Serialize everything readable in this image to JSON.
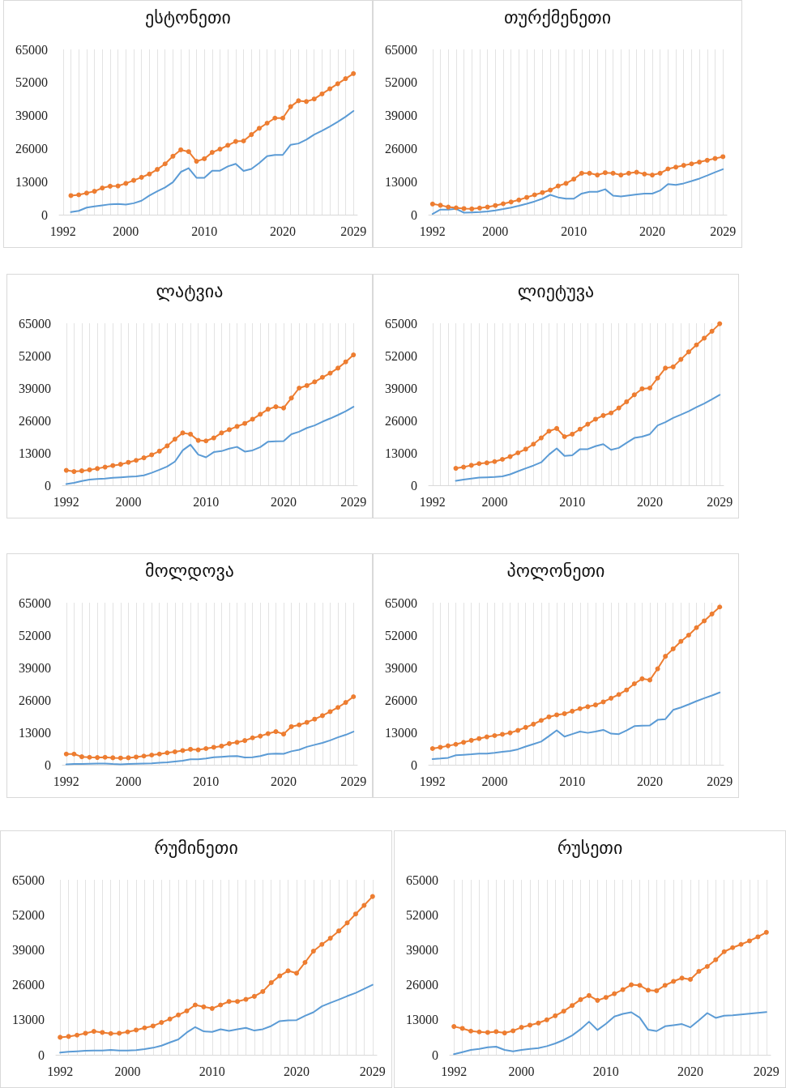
{
  "chart_data": [
    {
      "type": "line",
      "title": "ესტონეთი",
      "x": [
        1993,
        1994,
        1995,
        1996,
        1997,
        1998,
        1999,
        2000,
        2001,
        2002,
        2003,
        2004,
        2005,
        2006,
        2007,
        2008,
        2009,
        2010,
        2011,
        2012,
        2013,
        2014,
        2015,
        2016,
        2017,
        2018,
        2019,
        2020,
        2021,
        2022,
        2023,
        2024,
        2025,
        2026,
        2027,
        2028,
        2029
      ],
      "xlim": [
        1991.5,
        2029.5
      ],
      "xticks": [
        1992,
        {
          "value": 1993,
          "label": null
        },
        {
          "value": 1994,
          "label": null
        },
        {
          "value": 1995,
          "label": null
        },
        {
          "value": 1996,
          "label": null
        },
        {
          "value": 1997,
          "label": null
        },
        {
          "value": 1998,
          "label": null
        },
        {
          "value": 1999,
          "label": null
        },
        2000,
        {
          "value": 2001,
          "label": null
        },
        {
          "value": 2002,
          "label": null
        },
        {
          "value": 2003,
          "label": null
        },
        {
          "value": 2004,
          "label": null
        },
        {
          "value": 2005,
          "label": null
        },
        {
          "value": 2006,
          "label": null
        },
        {
          "value": 2007,
          "label": null
        },
        {
          "value": 2008,
          "label": null
        },
        {
          "value": 2009,
          "label": null
        },
        2010,
        {
          "value": 2011,
          "label": null
        },
        {
          "value": 2012,
          "label": null
        },
        {
          "value": 2013,
          "label": null
        },
        {
          "value": 2014,
          "label": null
        },
        {
          "value": 2015,
          "label": null
        },
        {
          "value": 2016,
          "label": null
        },
        {
          "value": 2017,
          "label": null
        },
        {
          "value": 2018,
          "label": null
        },
        {
          "value": 2019,
          "label": null
        },
        2020,
        {
          "value": 2021,
          "label": null
        },
        {
          "value": 2022,
          "label": null
        },
        {
          "value": 2023,
          "label": null
        },
        {
          "value": 2024,
          "label": null
        },
        {
          "value": 2025,
          "label": null
        },
        {
          "value": 2026,
          "label": null
        },
        {
          "value": 2027,
          "label": null
        },
        {
          "value": 2028,
          "label": null
        },
        2029
      ],
      "ylim": [
        0,
        65000
      ],
      "yticks": [
        0,
        13000,
        26000,
        39000,
        52000,
        65000
      ],
      "grid": "x",
      "series": [
        {
          "color": "#5b9bd5",
          "marker": "none",
          "values": [
            1000,
            1500,
            2800,
            3300,
            3700,
            4100,
            4200,
            4000,
            4500,
            5500,
            7500,
            9200,
            10700,
            12800,
            16800,
            18300,
            14500,
            14500,
            17300,
            17300,
            19000,
            20000,
            17200,
            18000,
            20300,
            23000,
            23500,
            23500,
            27500,
            28000,
            29500,
            31500,
            33000,
            34700,
            36500,
            38500,
            40800
          ]
        },
        {
          "color": "#ed7d31",
          "marker": "circle",
          "values": [
            7500,
            7800,
            8500,
            9200,
            10500,
            11200,
            11300,
            12300,
            13500,
            14700,
            16000,
            17800,
            20000,
            23000,
            25500,
            24800,
            21000,
            22000,
            24500,
            25800,
            27300,
            28800,
            29000,
            31500,
            34000,
            36000,
            38000,
            38000,
            42500,
            44800,
            44500,
            45500,
            47500,
            49500,
            51500,
            53500,
            55500
          ]
        }
      ]
    },
    {
      "type": "line",
      "title": "თურქმენეთი",
      "x": [
        1992,
        1993,
        1994,
        1995,
        1996,
        1997,
        1998,
        1999,
        2000,
        2001,
        2002,
        2003,
        2004,
        2005,
        2006,
        2007,
        2008,
        2009,
        2010,
        2011,
        2012,
        2013,
        2014,
        2015,
        2016,
        2017,
        2018,
        2019,
        2020,
        2021,
        2022,
        2023,
        2024,
        2025,
        2026,
        2027,
        2028,
        2029
      ],
      "xlim": [
        1991.5,
        2029.5
      ],
      "xticks": [
        1992,
        {
          "value": 1993,
          "label": null
        },
        {
          "value": 1994,
          "label": null
        },
        {
          "value": 1995,
          "label": null
        },
        {
          "value": 1996,
          "label": null
        },
        {
          "value": 1997,
          "label": null
        },
        {
          "value": 1998,
          "label": null
        },
        {
          "value": 1999,
          "label": null
        },
        2000,
        {
          "value": 2001,
          "label": null
        },
        {
          "value": 2002,
          "label": null
        },
        {
          "value": 2003,
          "label": null
        },
        {
          "value": 2004,
          "label": null
        },
        {
          "value": 2005,
          "label": null
        },
        {
          "value": 2006,
          "label": null
        },
        {
          "value": 2007,
          "label": null
        },
        {
          "value": 2008,
          "label": null
        },
        {
          "value": 2009,
          "label": null
        },
        2010,
        {
          "value": 2011,
          "label": null
        },
        {
          "value": 2012,
          "label": null
        },
        {
          "value": 2013,
          "label": null
        },
        {
          "value": 2014,
          "label": null
        },
        {
          "value": 2015,
          "label": null
        },
        {
          "value": 2016,
          "label": null
        },
        {
          "value": 2017,
          "label": null
        },
        {
          "value": 2018,
          "label": null
        },
        {
          "value": 2019,
          "label": null
        },
        2020,
        {
          "value": 2021,
          "label": null
        },
        {
          "value": 2022,
          "label": null
        },
        {
          "value": 2023,
          "label": null
        },
        {
          "value": 2024,
          "label": null
        },
        {
          "value": 2025,
          "label": null
        },
        {
          "value": 2026,
          "label": null
        },
        {
          "value": 2027,
          "label": null
        },
        {
          "value": 2028,
          "label": null
        },
        2029
      ],
      "ylim": [
        0,
        65000
      ],
      "yticks": [
        0,
        13000,
        26000,
        39000,
        52000,
        65000
      ],
      "grid": "x",
      "series": [
        {
          "color": "#5b9bd5",
          "marker": "none",
          "values": [
            300,
            2000,
            2000,
            2300,
            800,
            900,
            1000,
            1300,
            1700,
            2200,
            2800,
            3500,
            4300,
            5200,
            6300,
            7800,
            6800,
            6300,
            6300,
            8300,
            9000,
            9000,
            10000,
            7500,
            7200,
            7600,
            8000,
            8300,
            8300,
            9500,
            12000,
            11700,
            12300,
            13200,
            14200,
            15400,
            16700,
            17900
          ]
        },
        {
          "color": "#ed7d31",
          "marker": "circle",
          "values": [
            4200,
            3700,
            3000,
            2700,
            2400,
            2300,
            2600,
            3000,
            3600,
            4300,
            5000,
            5800,
            6800,
            7800,
            8700,
            9700,
            11300,
            12300,
            14000,
            16300,
            16300,
            15600,
            16500,
            16300,
            15600,
            16300,
            16700,
            16000,
            15600,
            16300,
            18000,
            18700,
            19400,
            20000,
            20700,
            21400,
            22100,
            22800
          ]
        }
      ]
    },
    {
      "type": "line",
      "title": "ლატვია",
      "x": [
        1992,
        1993,
        1994,
        1995,
        1996,
        1997,
        1998,
        1999,
        2000,
        2001,
        2002,
        2003,
        2004,
        2005,
        2006,
        2007,
        2008,
        2009,
        2010,
        2011,
        2012,
        2013,
        2014,
        2015,
        2016,
        2017,
        2018,
        2019,
        2020,
        2021,
        2022,
        2023,
        2024,
        2025,
        2026,
        2027,
        2028,
        2029
      ],
      "xlim": [
        1991.5,
        2029.5
      ],
      "xticks": [
        1992,
        {
          "value": 1993,
          "label": null
        },
        {
          "value": 1994,
          "label": null
        },
        {
          "value": 1995,
          "label": null
        },
        {
          "value": 1996,
          "label": null
        },
        {
          "value": 1997,
          "label": null
        },
        {
          "value": 1998,
          "label": null
        },
        {
          "value": 1999,
          "label": null
        },
        2000,
        {
          "value": 2001,
          "label": null
        },
        {
          "value": 2002,
          "label": null
        },
        {
          "value": 2003,
          "label": null
        },
        {
          "value": 2004,
          "label": null
        },
        {
          "value": 2005,
          "label": null
        },
        {
          "value": 2006,
          "label": null
        },
        {
          "value": 2007,
          "label": null
        },
        {
          "value": 2008,
          "label": null
        },
        {
          "value": 2009,
          "label": null
        },
        2010,
        {
          "value": 2011,
          "label": null
        },
        {
          "value": 2012,
          "label": null
        },
        {
          "value": 2013,
          "label": null
        },
        {
          "value": 2014,
          "label": null
        },
        {
          "value": 2015,
          "label": null
        },
        {
          "value": 2016,
          "label": null
        },
        {
          "value": 2017,
          "label": null
        },
        {
          "value": 2018,
          "label": null
        },
        {
          "value": 2019,
          "label": null
        },
        2020,
        {
          "value": 2021,
          "label": null
        },
        {
          "value": 2022,
          "label": null
        },
        {
          "value": 2023,
          "label": null
        },
        {
          "value": 2024,
          "label": null
        },
        {
          "value": 2025,
          "label": null
        },
        {
          "value": 2026,
          "label": null
        },
        {
          "value": 2027,
          "label": null
        },
        {
          "value": 2028,
          "label": null
        },
        2029
      ],
      "ylim": [
        0,
        65000
      ],
      "yticks": [
        0,
        13000,
        26000,
        39000,
        52000,
        65000
      ],
      "grid": "x",
      "series": [
        {
          "color": "#5b9bd5",
          "marker": "none",
          "values": [
            500,
            1000,
            1700,
            2300,
            2500,
            2700,
            3000,
            3200,
            3400,
            3600,
            4000,
            5000,
            6200,
            7500,
            9500,
            14000,
            16300,
            12300,
            11200,
            13300,
            13700,
            14700,
            15400,
            13500,
            14000,
            15300,
            17500,
            17600,
            17700,
            20500,
            21500,
            23000,
            24000,
            25500,
            26800,
            28200,
            29700,
            31500
          ]
        },
        {
          "color": "#ed7d31",
          "marker": "circle",
          "values": [
            6000,
            5500,
            5800,
            6200,
            6700,
            7300,
            7900,
            8400,
            9200,
            10000,
            11000,
            12200,
            13700,
            15800,
            18500,
            21000,
            20500,
            18000,
            17800,
            19000,
            21000,
            22300,
            23600,
            24800,
            26500,
            28500,
            30500,
            31500,
            31000,
            35000,
            39000,
            40000,
            41500,
            43300,
            45000,
            47000,
            49500,
            52300
          ]
        }
      ]
    },
    {
      "type": "line",
      "title": "ლიეტუვა",
      "x": [
        1995,
        1996,
        1997,
        1998,
        1999,
        2000,
        2001,
        2002,
        2003,
        2004,
        2005,
        2006,
        2007,
        2008,
        2009,
        2010,
        2011,
        2012,
        2013,
        2014,
        2015,
        2016,
        2017,
        2018,
        2019,
        2020,
        2021,
        2022,
        2023,
        2024,
        2025,
        2026,
        2027,
        2028,
        2029
      ],
      "xlim": [
        1991.5,
        2029.5
      ],
      "xticks": [
        1992,
        {
          "value": 1993,
          "label": null
        },
        {
          "value": 1994,
          "label": null
        },
        {
          "value": 1995,
          "label": null
        },
        {
          "value": 1996,
          "label": null
        },
        {
          "value": 1997,
          "label": null
        },
        {
          "value": 1998,
          "label": null
        },
        {
          "value": 1999,
          "label": null
        },
        2000,
        {
          "value": 2001,
          "label": null
        },
        {
          "value": 2002,
          "label": null
        },
        {
          "value": 2003,
          "label": null
        },
        {
          "value": 2004,
          "label": null
        },
        {
          "value": 2005,
          "label": null
        },
        {
          "value": 2006,
          "label": null
        },
        {
          "value": 2007,
          "label": null
        },
        {
          "value": 2008,
          "label": null
        },
        {
          "value": 2009,
          "label": null
        },
        2010,
        {
          "value": 2011,
          "label": null
        },
        {
          "value": 2012,
          "label": null
        },
        {
          "value": 2013,
          "label": null
        },
        {
          "value": 2014,
          "label": null
        },
        {
          "value": 2015,
          "label": null
        },
        {
          "value": 2016,
          "label": null
        },
        {
          "value": 2017,
          "label": null
        },
        {
          "value": 2018,
          "label": null
        },
        {
          "value": 2019,
          "label": null
        },
        2020,
        {
          "value": 2021,
          "label": null
        },
        {
          "value": 2022,
          "label": null
        },
        {
          "value": 2023,
          "label": null
        },
        {
          "value": 2024,
          "label": null
        },
        {
          "value": 2025,
          "label": null
        },
        {
          "value": 2026,
          "label": null
        },
        {
          "value": 2027,
          "label": null
        },
        {
          "value": 2028,
          "label": null
        },
        2029
      ],
      "ylim": [
        0,
        65000
      ],
      "yticks": [
        0,
        13000,
        26000,
        39000,
        52000,
        65000
      ],
      "grid": "x",
      "series": [
        {
          "color": "#5b9bd5",
          "marker": "none",
          "values": [
            1800,
            2300,
            2700,
            3100,
            3200,
            3300,
            3600,
            4400,
            5600,
            6800,
            7900,
            9200,
            12300,
            14800,
            11800,
            12000,
            14500,
            14500,
            15700,
            16500,
            14200,
            15000,
            17000,
            19000,
            19500,
            20500,
            24000,
            25300,
            27000,
            28300,
            29700,
            31300,
            32800,
            34500,
            36300
          ]
        },
        {
          "color": "#ed7d31",
          "marker": "circle",
          "values": [
            6800,
            7300,
            8000,
            8700,
            9000,
            9500,
            10400,
            11500,
            13000,
            14500,
            16500,
            19000,
            21700,
            22800,
            19500,
            20500,
            22500,
            24500,
            26500,
            28000,
            29000,
            31000,
            33500,
            36300,
            38700,
            39000,
            43000,
            47000,
            47500,
            50500,
            53500,
            56300,
            59000,
            61800,
            64800
          ]
        }
      ]
    },
    {
      "type": "line",
      "title": "მოლდოვა",
      "x": [
        1992,
        1993,
        1994,
        1995,
        1996,
        1997,
        1998,
        1999,
        2000,
        2001,
        2002,
        2003,
        2004,
        2005,
        2006,
        2007,
        2008,
        2009,
        2010,
        2011,
        2012,
        2013,
        2014,
        2015,
        2016,
        2017,
        2018,
        2019,
        2020,
        2021,
        2022,
        2023,
        2024,
        2025,
        2026,
        2027,
        2028,
        2029
      ],
      "xlim": [
        1991.5,
        2029.5
      ],
      "xticks": [
        1992,
        {
          "value": 1993,
          "label": null
        },
        {
          "value": 1994,
          "label": null
        },
        {
          "value": 1995,
          "label": null
        },
        {
          "value": 1996,
          "label": null
        },
        {
          "value": 1997,
          "label": null
        },
        {
          "value": 1998,
          "label": null
        },
        {
          "value": 1999,
          "label": null
        },
        2000,
        {
          "value": 2001,
          "label": null
        },
        {
          "value": 2002,
          "label": null
        },
        {
          "value": 2003,
          "label": null
        },
        {
          "value": 2004,
          "label": null
        },
        {
          "value": 2005,
          "label": null
        },
        {
          "value": 2006,
          "label": null
        },
        {
          "value": 2007,
          "label": null
        },
        {
          "value": 2008,
          "label": null
        },
        {
          "value": 2009,
          "label": null
        },
        2010,
        {
          "value": 2011,
          "label": null
        },
        {
          "value": 2012,
          "label": null
        },
        {
          "value": 2013,
          "label": null
        },
        {
          "value": 2014,
          "label": null
        },
        {
          "value": 2015,
          "label": null
        },
        {
          "value": 2016,
          "label": null
        },
        {
          "value": 2017,
          "label": null
        },
        {
          "value": 2018,
          "label": null
        },
        {
          "value": 2019,
          "label": null
        },
        2020,
        {
          "value": 2021,
          "label": null
        },
        {
          "value": 2022,
          "label": null
        },
        {
          "value": 2023,
          "label": null
        },
        {
          "value": 2024,
          "label": null
        },
        {
          "value": 2025,
          "label": null
        },
        {
          "value": 2026,
          "label": null
        },
        {
          "value": 2027,
          "label": null
        },
        {
          "value": 2028,
          "label": null
        },
        2029
      ],
      "ylim": [
        0,
        65000
      ],
      "yticks": [
        0,
        13000,
        26000,
        39000,
        52000,
        65000
      ],
      "grid": "x",
      "series": [
        {
          "color": "#5b9bd5",
          "marker": "none",
          "values": [
            200,
            300,
            300,
            400,
            500,
            500,
            300,
            200,
            300,
            400,
            500,
            600,
            800,
            1000,
            1300,
            1600,
            2200,
            2200,
            2500,
            3000,
            3200,
            3400,
            3500,
            2900,
            3000,
            3500,
            4300,
            4500,
            4400,
            5400,
            6000,
            7200,
            8000,
            8800,
            9800,
            11000,
            12000,
            13300
          ]
        },
        {
          "color": "#ed7d31",
          "marker": "circle",
          "values": [
            4300,
            4300,
            3200,
            3000,
            2900,
            3000,
            2800,
            2700,
            2800,
            3100,
            3500,
            3900,
            4300,
            4800,
            5200,
            5700,
            6200,
            6000,
            6500,
            7000,
            7500,
            8500,
            9000,
            9700,
            10800,
            11500,
            12500,
            13300,
            12300,
            15300,
            16000,
            17000,
            18300,
            19700,
            21300,
            23000,
            25000,
            27300
          ]
        }
      ]
    },
    {
      "type": "line",
      "title": "პოლონეთი",
      "x": [
        1992,
        1993,
        1994,
        1995,
        1996,
        1997,
        1998,
        1999,
        2000,
        2001,
        2002,
        2003,
        2004,
        2005,
        2006,
        2007,
        2008,
        2009,
        2010,
        2011,
        2012,
        2013,
        2014,
        2015,
        2016,
        2017,
        2018,
        2019,
        2020,
        2021,
        2022,
        2023,
        2024,
        2025,
        2026,
        2027,
        2028,
        2029
      ],
      "xlim": [
        1991.5,
        2029.5
      ],
      "xticks": [
        1992,
        {
          "value": 1993,
          "label": null
        },
        {
          "value": 1994,
          "label": null
        },
        {
          "value": 1995,
          "label": null
        },
        {
          "value": 1996,
          "label": null
        },
        {
          "value": 1997,
          "label": null
        },
        {
          "value": 1998,
          "label": null
        },
        {
          "value": 1999,
          "label": null
        },
        2000,
        {
          "value": 2001,
          "label": null
        },
        {
          "value": 2002,
          "label": null
        },
        {
          "value": 2003,
          "label": null
        },
        {
          "value": 2004,
          "label": null
        },
        {
          "value": 2005,
          "label": null
        },
        {
          "value": 2006,
          "label": null
        },
        {
          "value": 2007,
          "label": null
        },
        {
          "value": 2008,
          "label": null
        },
        {
          "value": 2009,
          "label": null
        },
        2010,
        {
          "value": 2011,
          "label": null
        },
        {
          "value": 2012,
          "label": null
        },
        {
          "value": 2013,
          "label": null
        },
        {
          "value": 2014,
          "label": null
        },
        {
          "value": 2015,
          "label": null
        },
        {
          "value": 2016,
          "label": null
        },
        {
          "value": 2017,
          "label": null
        },
        {
          "value": 2018,
          "label": null
        },
        {
          "value": 2019,
          "label": null
        },
        2020,
        {
          "value": 2021,
          "label": null
        },
        {
          "value": 2022,
          "label": null
        },
        {
          "value": 2023,
          "label": null
        },
        {
          "value": 2024,
          "label": null
        },
        {
          "value": 2025,
          "label": null
        },
        {
          "value": 2026,
          "label": null
        },
        {
          "value": 2027,
          "label": null
        },
        {
          "value": 2028,
          "label": null
        },
        2029
      ],
      "ylim": [
        0,
        65000
      ],
      "yticks": [
        0,
        13000,
        26000,
        39000,
        52000,
        65000
      ],
      "grid": "x",
      "series": [
        {
          "color": "#5b9bd5",
          "marker": "none",
          "values": [
            2300,
            2500,
            2800,
            3800,
            4000,
            4200,
            4500,
            4500,
            4800,
            5200,
            5500,
            6200,
            7300,
            8300,
            9300,
            11500,
            13800,
            11300,
            12300,
            13300,
            12800,
            13300,
            14000,
            12500,
            12300,
            13800,
            15500,
            15700,
            15800,
            18000,
            18300,
            22000,
            23000,
            24200,
            25500,
            26700,
            27800,
            29000
          ]
        },
        {
          "color": "#ed7d31",
          "marker": "circle",
          "values": [
            6500,
            7000,
            7600,
            8200,
            9000,
            9800,
            10500,
            11200,
            11700,
            12200,
            12800,
            13800,
            15000,
            16300,
            17800,
            19200,
            20000,
            20500,
            21500,
            22500,
            23300,
            24000,
            25200,
            26700,
            28200,
            30000,
            32500,
            34500,
            34000,
            38500,
            43500,
            46500,
            49500,
            52000,
            55000,
            57700,
            60500,
            63300
          ]
        }
      ]
    },
    {
      "type": "line",
      "title": "რუმინეთი",
      "x": [
        1992,
        1993,
        1994,
        1995,
        1996,
        1997,
        1998,
        1999,
        2000,
        2001,
        2002,
        2003,
        2004,
        2005,
        2006,
        2007,
        2008,
        2009,
        2010,
        2011,
        2012,
        2013,
        2014,
        2015,
        2016,
        2017,
        2018,
        2019,
        2020,
        2021,
        2022,
        2023,
        2024,
        2025,
        2026,
        2027,
        2028,
        2029
      ],
      "xlim": [
        1991.5,
        2029.5
      ],
      "xticks": [
        1992,
        {
          "value": 1993,
          "label": null
        },
        {
          "value": 1994,
          "label": null
        },
        {
          "value": 1995,
          "label": null
        },
        {
          "value": 1996,
          "label": null
        },
        {
          "value": 1997,
          "label": null
        },
        {
          "value": 1998,
          "label": null
        },
        {
          "value": 1999,
          "label": null
        },
        2000,
        {
          "value": 2001,
          "label": null
        },
        {
          "value": 2002,
          "label": null
        },
        {
          "value": 2003,
          "label": null
        },
        {
          "value": 2004,
          "label": null
        },
        {
          "value": 2005,
          "label": null
        },
        {
          "value": 2006,
          "label": null
        },
        {
          "value": 2007,
          "label": null
        },
        {
          "value": 2008,
          "label": null
        },
        {
          "value": 2009,
          "label": null
        },
        2010,
        {
          "value": 2011,
          "label": null
        },
        {
          "value": 2012,
          "label": null
        },
        {
          "value": 2013,
          "label": null
        },
        {
          "value": 2014,
          "label": null
        },
        {
          "value": 2015,
          "label": null
        },
        {
          "value": 2016,
          "label": null
        },
        {
          "value": 2017,
          "label": null
        },
        {
          "value": 2018,
          "label": null
        },
        {
          "value": 2019,
          "label": null
        },
        2020,
        {
          "value": 2021,
          "label": null
        },
        {
          "value": 2022,
          "label": null
        },
        {
          "value": 2023,
          "label": null
        },
        {
          "value": 2024,
          "label": null
        },
        {
          "value": 2025,
          "label": null
        },
        {
          "value": 2026,
          "label": null
        },
        {
          "value": 2027,
          "label": null
        },
        {
          "value": 2028,
          "label": null
        },
        2029
      ],
      "ylim": [
        0,
        65000
      ],
      "yticks": [
        0,
        13000,
        26000,
        39000,
        52000,
        65000
      ],
      "grid": "x",
      "series": [
        {
          "color": "#5b9bd5",
          "marker": "none",
          "values": [
            800,
            1100,
            1300,
            1500,
            1600,
            1600,
            1800,
            1600,
            1600,
            1700,
            2100,
            2600,
            3400,
            4600,
            5700,
            8300,
            10300,
            8700,
            8500,
            9500,
            8900,
            9500,
            10000,
            9000,
            9500,
            10700,
            12500,
            12800,
            12900,
            14500,
            15800,
            18000,
            19300,
            20500,
            21800,
            23000,
            24500,
            26000
          ]
        },
        {
          "color": "#ed7d31",
          "marker": "circle",
          "values": [
            6500,
            6800,
            7300,
            8000,
            8700,
            8300,
            7900,
            8000,
            8500,
            9200,
            10000,
            10700,
            12000,
            13300,
            14800,
            16300,
            18500,
            17800,
            17200,
            18500,
            19800,
            19800,
            20600,
            21700,
            23500,
            26800,
            29300,
            31200,
            30300,
            34300,
            38500,
            41000,
            43300,
            46000,
            49000,
            52300,
            55500,
            58800
          ]
        }
      ]
    },
    {
      "type": "line",
      "title": "რუსეთი",
      "x": [
        1992,
        1993,
        1994,
        1995,
        1996,
        1997,
        1998,
        1999,
        2000,
        2001,
        2002,
        2003,
        2004,
        2005,
        2006,
        2007,
        2008,
        2009,
        2010,
        2011,
        2012,
        2013,
        2014,
        2015,
        2016,
        2017,
        2018,
        2019,
        2020,
        2021,
        2022,
        2023,
        2024,
        2025,
        2026,
        2027,
        2028,
        2029
      ],
      "xlim": [
        1991.5,
        2029.5
      ],
      "xticks": [
        1992,
        {
          "value": 1993,
          "label": null
        },
        {
          "value": 1994,
          "label": null
        },
        {
          "value": 1995,
          "label": null
        },
        {
          "value": 1996,
          "label": null
        },
        {
          "value": 1997,
          "label": null
        },
        {
          "value": 1998,
          "label": null
        },
        {
          "value": 1999,
          "label": null
        },
        2000,
        {
          "value": 2001,
          "label": null
        },
        {
          "value": 2002,
          "label": null
        },
        {
          "value": 2003,
          "label": null
        },
        {
          "value": 2004,
          "label": null
        },
        {
          "value": 2005,
          "label": null
        },
        {
          "value": 2006,
          "label": null
        },
        {
          "value": 2007,
          "label": null
        },
        {
          "value": 2008,
          "label": null
        },
        {
          "value": 2009,
          "label": null
        },
        2010,
        {
          "value": 2011,
          "label": null
        },
        {
          "value": 2012,
          "label": null
        },
        {
          "value": 2013,
          "label": null
        },
        {
          "value": 2014,
          "label": null
        },
        {
          "value": 2015,
          "label": null
        },
        {
          "value": 2016,
          "label": null
        },
        {
          "value": 2017,
          "label": null
        },
        {
          "value": 2018,
          "label": null
        },
        {
          "value": 2019,
          "label": null
        },
        2020,
        {
          "value": 2021,
          "label": null
        },
        {
          "value": 2022,
          "label": null
        },
        {
          "value": 2023,
          "label": null
        },
        {
          "value": 2024,
          "label": null
        },
        {
          "value": 2025,
          "label": null
        },
        {
          "value": 2026,
          "label": null
        },
        {
          "value": 2027,
          "label": null
        },
        {
          "value": 2028,
          "label": null
        },
        2029
      ],
      "ylim": [
        0,
        65000
      ],
      "yticks": [
        0,
        13000,
        26000,
        39000,
        52000,
        65000
      ],
      "grid": "x",
      "series": [
        {
          "color": "#5b9bd5",
          "marker": "none",
          "values": [
            200,
            1000,
            1800,
            2200,
            2800,
            3000,
            1800,
            1300,
            1800,
            2200,
            2500,
            3200,
            4200,
            5500,
            7200,
            9500,
            12300,
            9200,
            11500,
            14200,
            15200,
            15800,
            13800,
            9300,
            8800,
            10600,
            11000,
            11400,
            10200,
            12800,
            15500,
            13700,
            14500,
            14700,
            15000,
            15300,
            15600,
            15900
          ]
        },
        {
          "color": "#ed7d31",
          "marker": "circle",
          "values": [
            10500,
            9800,
            8800,
            8500,
            8300,
            8600,
            8100,
            8900,
            10200,
            11000,
            11800,
            13000,
            14500,
            16200,
            18300,
            20500,
            22000,
            20200,
            21300,
            22700,
            24200,
            26000,
            25800,
            24000,
            23800,
            25800,
            27300,
            28500,
            28000,
            31000,
            32800,
            35300,
            38300,
            39800,
            41000,
            42300,
            43800,
            45500
          ]
        }
      ]
    }
  ]
}
